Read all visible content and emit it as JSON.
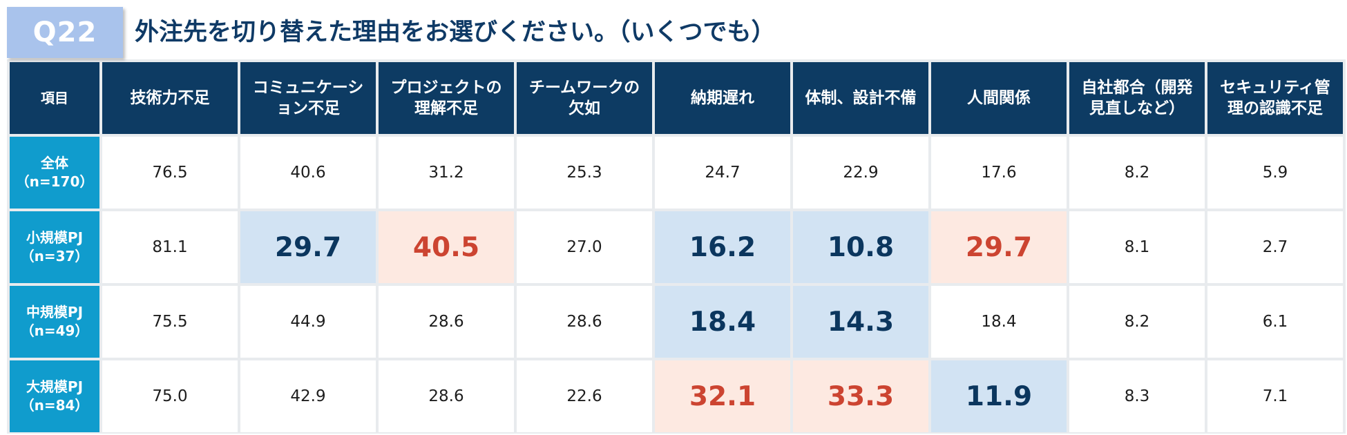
{
  "header": {
    "question_label": "Q22",
    "title": "外注先を切り替えた理由をお選びください。（いくつでも）"
  },
  "chart_data": {
    "type": "table",
    "title": "外注先を切り替えた理由をお選びください。（いくつでも）",
    "item_header": "項目",
    "columns": [
      "技術力不足",
      "コミュニケーション不足",
      "プロジェクトの理解不足",
      "チームワークの欠如",
      "納期遅れ",
      "体制、設計不備",
      "人間関係",
      "自社都合（開発見直しなど）",
      "セキュリティ管理の認識不足"
    ],
    "column_display": [
      "技術力不足",
      "コミュニケーシ\nョン不足",
      "プロジェクトの\n理解不足",
      "チームワークの\n欠如",
      "納期遅れ",
      "体制、設計不備",
      "人間関係",
      "自社都合（開発\n見直しなど）",
      "セキュリティ管\n理の認識不足"
    ],
    "rows": [
      {
        "label": "全体\n（n=170）",
        "values": [
          "76.5",
          "40.6",
          "31.2",
          "25.3",
          "24.7",
          "22.9",
          "17.6",
          "8.2",
          "5.9"
        ],
        "highlight": [
          "",
          "",
          "",
          "",
          "",
          "",
          "",
          "",
          ""
        ]
      },
      {
        "label": "小規模PJ\n（n=37）",
        "values": [
          "81.1",
          "29.7",
          "40.5",
          "27.0",
          "16.2",
          "10.8",
          "29.7",
          "8.1",
          "2.7"
        ],
        "highlight": [
          "",
          "low",
          "high",
          "",
          "low",
          "low",
          "high",
          "",
          ""
        ]
      },
      {
        "label": "中規模PJ\n（n=49）",
        "values": [
          "75.5",
          "44.9",
          "28.6",
          "28.6",
          "18.4",
          "14.3",
          "18.4",
          "8.2",
          "6.1"
        ],
        "highlight": [
          "",
          "",
          "",
          "",
          "low",
          "low",
          "",
          "",
          ""
        ]
      },
      {
        "label": "大規模PJ\n（n=84）",
        "values": [
          "75.0",
          "42.9",
          "28.6",
          "22.6",
          "32.1",
          "33.3",
          "11.9",
          "8.3",
          "7.1"
        ],
        "highlight": [
          "",
          "",
          "",
          "",
          "high",
          "high",
          "low",
          "",
          ""
        ]
      }
    ],
    "colors": {
      "header_bg": "#0d3b63",
      "row_header_bg": "#109ccd",
      "low_bg": "#d2e3f3",
      "low_text": "#0b365e",
      "high_bg": "#fde9e1",
      "high_text": "#cc4431",
      "badge_bg": "#a9c3ec"
    }
  }
}
